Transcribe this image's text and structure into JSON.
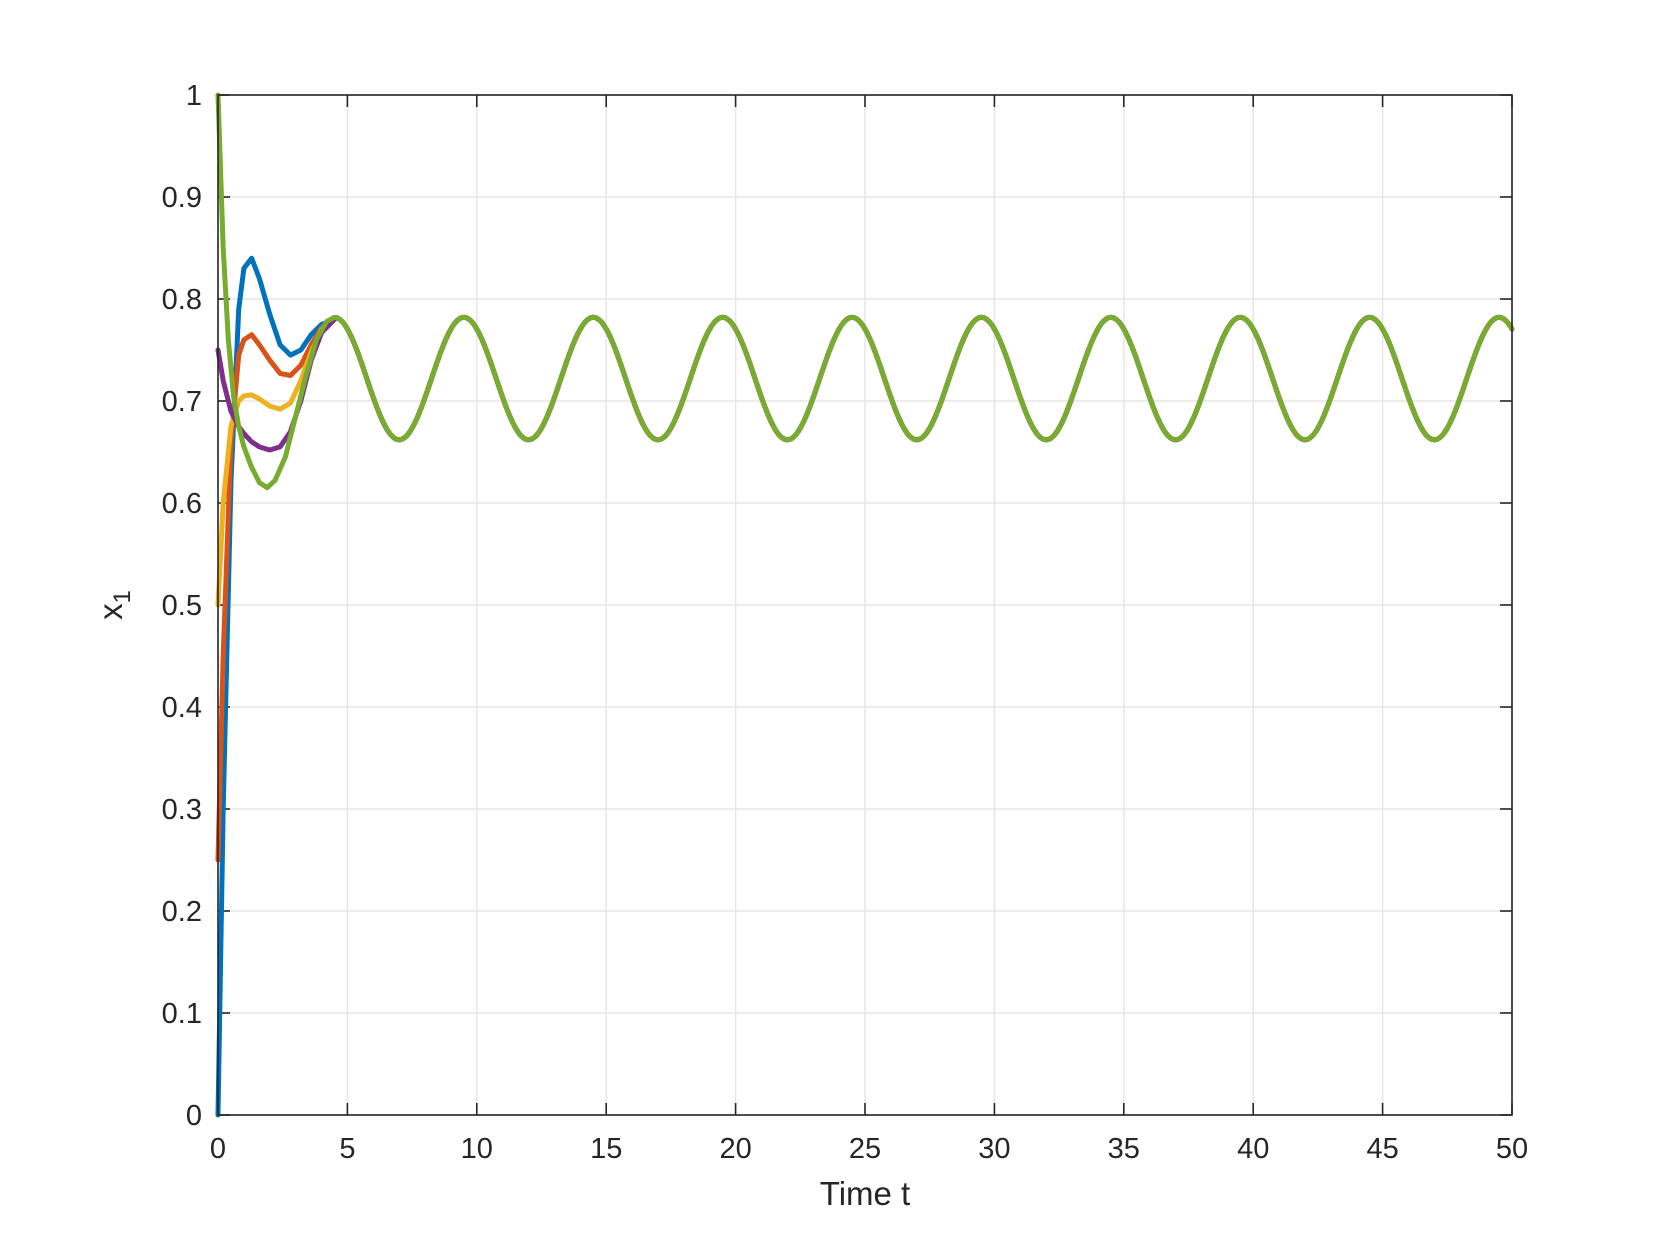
{
  "chart_data": {
    "type": "line",
    "title": "",
    "xlabel": "Time t",
    "ylabel": "x",
    "ylabel_subscript": "1",
    "xlim": [
      0,
      50
    ],
    "ylim": [
      0,
      1
    ],
    "xticks": [
      0,
      5,
      10,
      15,
      20,
      25,
      30,
      35,
      40,
      45,
      50
    ],
    "yticks": [
      0,
      0.1,
      0.2,
      0.3,
      0.4,
      0.5,
      0.6,
      0.7,
      0.8,
      0.9,
      1
    ],
    "xtick_labels": [
      "0",
      "5",
      "10",
      "15",
      "20",
      "25",
      "30",
      "35",
      "40",
      "45",
      "50"
    ],
    "ytick_labels": [
      "0",
      "0.1",
      "0.2",
      "0.3",
      "0.4",
      "0.5",
      "0.6",
      "0.7",
      "0.8",
      "0.9",
      "1"
    ],
    "grid": true,
    "legend": "none",
    "limit_cycle": {
      "center": 0.722,
      "amplitude": 0.06,
      "period": 5.0,
      "peak_time": 4.5
    },
    "series": [
      {
        "color": "#0072BD",
        "x": [
          0,
          0.2,
          0.5,
          0.8,
          1.0,
          1.3,
          1.6,
          2.0,
          2.4,
          2.8,
          3.2,
          3.6,
          4.0,
          4.5
        ],
        "y": [
          0.0,
          0.3,
          0.62,
          0.79,
          0.83,
          0.84,
          0.82,
          0.785,
          0.755,
          0.745,
          0.75,
          0.765,
          0.775,
          0.78
        ]
      },
      {
        "color": "#D95319",
        "x": [
          0,
          0.2,
          0.5,
          0.8,
          1.0,
          1.3,
          1.6,
          2.0,
          2.4,
          2.8,
          3.2,
          3.6,
          4.0,
          4.5
        ],
        "y": [
          0.25,
          0.45,
          0.66,
          0.745,
          0.76,
          0.765,
          0.755,
          0.74,
          0.727,
          0.725,
          0.735,
          0.755,
          0.772,
          0.78
        ]
      },
      {
        "color": "#EDB120",
        "x": [
          0,
          0.2,
          0.5,
          0.8,
          1.0,
          1.3,
          1.6,
          2.0,
          2.4,
          2.8,
          3.2,
          3.6,
          4.0,
          4.5
        ],
        "y": [
          0.5,
          0.6,
          0.675,
          0.7,
          0.705,
          0.706,
          0.702,
          0.695,
          0.692,
          0.698,
          0.72,
          0.748,
          0.77,
          0.78
        ]
      },
      {
        "color": "#7E2F8E",
        "x": [
          0,
          0.2,
          0.5,
          0.8,
          1.0,
          1.3,
          1.6,
          2.0,
          2.4,
          2.8,
          3.2,
          3.6,
          4.0,
          4.5
        ],
        "y": [
          0.75,
          0.72,
          0.69,
          0.675,
          0.668,
          0.66,
          0.655,
          0.652,
          0.655,
          0.67,
          0.7,
          0.74,
          0.767,
          0.78
        ]
      },
      {
        "color": "#77AC30",
        "x": [
          0,
          0.2,
          0.4,
          0.6,
          0.8,
          1.0,
          1.3,
          1.6,
          1.9,
          2.2,
          2.6,
          3.0,
          3.4,
          3.8,
          4.2,
          4.5
        ],
        "y": [
          1.0,
          0.85,
          0.76,
          0.705,
          0.675,
          0.655,
          0.635,
          0.62,
          0.615,
          0.622,
          0.645,
          0.685,
          0.725,
          0.76,
          0.778,
          0.782
        ]
      }
    ]
  }
}
